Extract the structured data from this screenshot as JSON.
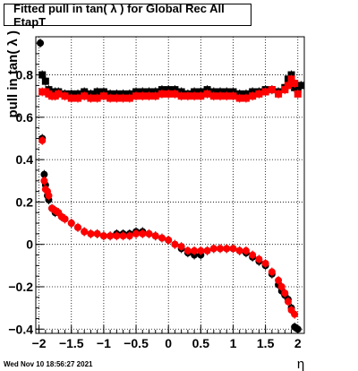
{
  "chart_data": {
    "type": "scatter",
    "title": "Fitted pull in tan( λ ) for Global Rec All EtapT",
    "xlabel": "η",
    "ylabel": "pull in tan( λ )",
    "xlim": [
      -2.05,
      2.1
    ],
    "ylim": [
      -0.42,
      0.98
    ],
    "grid": true,
    "x_ticks": [
      -2,
      -1.5,
      -1,
      -0.5,
      0,
      0.5,
      1,
      1.5,
      2
    ],
    "x_tick_labels": [
      "−2",
      "−1.5",
      "−1",
      "−0.5",
      "0",
      "0.5",
      "1",
      "1.5",
      "2"
    ],
    "y_ticks": [
      -0.4,
      -0.2,
      0,
      0.2,
      0.4,
      0.6,
      0.8
    ],
    "y_tick_labels": [
      "−0.4",
      "−0.2",
      "0",
      "0.2",
      "0.4",
      "0.6",
      "0.8"
    ],
    "series": [
      {
        "color": "#000000",
        "marker": "square",
        "x": [
          -1.95,
          -1.9,
          -1.85,
          -1.8,
          -1.75,
          -1.7,
          -1.6,
          -1.5,
          -1.4,
          -1.3,
          -1.2,
          -1.1,
          -1.0,
          -0.9,
          -0.8,
          -0.7,
          -0.6,
          -0.5,
          -0.4,
          -0.3,
          -0.2,
          -0.1,
          0.0,
          0.1,
          0.2,
          0.3,
          0.4,
          0.5,
          0.6,
          0.7,
          0.8,
          0.9,
          1.0,
          1.1,
          1.2,
          1.3,
          1.4,
          1.5,
          1.6,
          1.7,
          1.8,
          1.85,
          1.9,
          1.95,
          2.0,
          2.05
        ],
        "y": [
          0.8,
          0.77,
          0.73,
          0.71,
          0.72,
          0.72,
          0.71,
          0.71,
          0.71,
          0.72,
          0.71,
          0.72,
          0.72,
          0.71,
          0.71,
          0.71,
          0.71,
          0.72,
          0.72,
          0.72,
          0.72,
          0.73,
          0.73,
          0.73,
          0.72,
          0.71,
          0.72,
          0.72,
          0.73,
          0.72,
          0.72,
          0.72,
          0.72,
          0.71,
          0.71,
          0.72,
          0.72,
          0.73,
          0.73,
          0.72,
          0.74,
          0.78,
          0.8,
          0.74,
          0.73,
          0.75
        ]
      },
      {
        "color": "#ff0000",
        "marker": "square",
        "x": [
          -1.95,
          -1.9,
          -1.85,
          -1.8,
          -1.75,
          -1.7,
          -1.6,
          -1.5,
          -1.4,
          -1.3,
          -1.2,
          -1.1,
          -1.0,
          -0.9,
          -0.8,
          -0.7,
          -0.6,
          -0.5,
          -0.4,
          -0.3,
          -0.2,
          -0.1,
          0.0,
          0.1,
          0.2,
          0.3,
          0.4,
          0.5,
          0.6,
          0.7,
          0.8,
          0.9,
          1.0,
          1.1,
          1.2,
          1.3,
          1.4,
          1.5,
          1.6,
          1.7,
          1.8,
          1.85,
          1.9,
          1.95,
          2.0
        ],
        "y": [
          0.72,
          0.72,
          0.71,
          0.7,
          0.7,
          0.71,
          0.7,
          0.69,
          0.69,
          0.7,
          0.69,
          0.69,
          0.7,
          0.69,
          0.69,
          0.69,
          0.69,
          0.7,
          0.7,
          0.7,
          0.7,
          0.71,
          0.71,
          0.71,
          0.7,
          0.7,
          0.7,
          0.7,
          0.71,
          0.7,
          0.7,
          0.7,
          0.7,
          0.69,
          0.69,
          0.7,
          0.71,
          0.72,
          0.73,
          0.71,
          0.73,
          0.75,
          0.78,
          0.76,
          0.71
        ]
      },
      {
        "color": "#000000",
        "marker": "circle",
        "x": [
          -1.98,
          -1.95,
          -1.92,
          -1.9,
          -1.87,
          -1.85,
          -1.8,
          -1.75,
          -1.7,
          -1.65,
          -1.6,
          -1.5,
          -1.4,
          -1.3,
          -1.2,
          -1.1,
          -1.0,
          -0.9,
          -0.8,
          -0.7,
          -0.6,
          -0.5,
          -0.4,
          -0.3,
          -0.2,
          -0.1,
          0.0,
          0.1,
          0.2,
          0.3,
          0.4,
          0.5,
          0.6,
          0.7,
          0.8,
          0.9,
          1.0,
          1.1,
          1.2,
          1.3,
          1.4,
          1.5,
          1.6,
          1.7,
          1.75,
          1.8,
          1.85,
          1.9,
          1.95,
          2.0
        ],
        "y": [
          0.95,
          0.5,
          0.33,
          0.28,
          0.23,
          0.21,
          0.17,
          0.15,
          0.15,
          0.13,
          0.12,
          0.1,
          0.08,
          0.06,
          0.05,
          0.05,
          0.04,
          0.04,
          0.05,
          0.05,
          0.05,
          0.06,
          0.06,
          0.05,
          0.04,
          0.03,
          0.02,
          0.0,
          -0.02,
          -0.04,
          -0.05,
          -0.05,
          -0.03,
          -0.02,
          -0.02,
          -0.02,
          -0.02,
          -0.03,
          -0.04,
          -0.06,
          -0.08,
          -0.1,
          -0.14,
          -0.19,
          -0.22,
          -0.24,
          -0.26,
          -0.3,
          -0.39,
          -0.4
        ]
      },
      {
        "color": "#ff0000",
        "marker": "circle",
        "x": [
          -1.95,
          -1.92,
          -1.9,
          -1.87,
          -1.85,
          -1.8,
          -1.75,
          -1.7,
          -1.65,
          -1.6,
          -1.5,
          -1.4,
          -1.3,
          -1.2,
          -1.1,
          -1.0,
          -0.9,
          -0.8,
          -0.7,
          -0.6,
          -0.5,
          -0.4,
          -0.3,
          -0.2,
          -0.1,
          0.0,
          0.1,
          0.2,
          0.3,
          0.4,
          0.5,
          0.6,
          0.7,
          0.8,
          0.9,
          1.0,
          1.1,
          1.2,
          1.3,
          1.4,
          1.5,
          1.6,
          1.7,
          1.75,
          1.8,
          1.85,
          1.9,
          1.95
        ],
        "y": [
          0.49,
          0.3,
          0.26,
          0.25,
          0.23,
          0.17,
          0.16,
          0.15,
          0.13,
          0.12,
          0.1,
          0.08,
          0.06,
          0.05,
          0.05,
          0.04,
          0.04,
          0.04,
          0.04,
          0.04,
          0.05,
          0.05,
          0.05,
          0.04,
          0.03,
          0.02,
          0.0,
          -0.01,
          -0.03,
          -0.03,
          -0.03,
          -0.03,
          -0.02,
          -0.02,
          -0.02,
          -0.02,
          -0.03,
          -0.03,
          -0.05,
          -0.07,
          -0.09,
          -0.13,
          -0.17,
          -0.2,
          -0.23,
          -0.27,
          -0.31,
          -0.33
        ]
      }
    ]
  },
  "timestamp": "Wed Nov 10 18:56:27 2021"
}
